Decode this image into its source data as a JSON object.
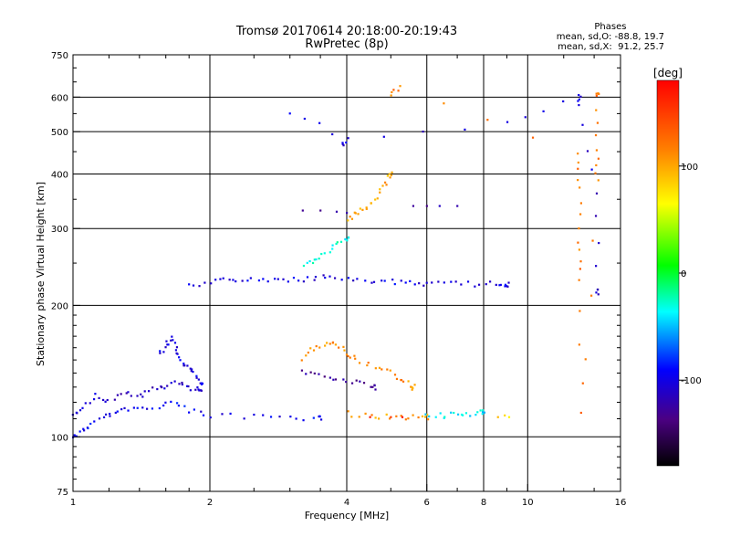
{
  "chart_data": {
    "type": "scatter",
    "title": "Tromsø 20170614 20:18:00-20:19:43",
    "subtitle": "RwPretec (8p)",
    "xlabel": "Frequency [MHz]",
    "ylabel": "Stationary phase Virtual Height [km]",
    "x_scale": "log",
    "y_scale": "log",
    "xlim": [
      1,
      16
    ],
    "ylim": [
      75,
      750
    ],
    "x_ticks": [
      1,
      2,
      4,
      6,
      8,
      10,
      16
    ],
    "x_tick_labels": [
      "1",
      "2",
      "4",
      "6",
      "8",
      "10",
      "16"
    ],
    "y_ticks": [
      75,
      100,
      200,
      300,
      400,
      500,
      600,
      750
    ],
    "y_tick_labels": [
      "75",
      "100",
      "200",
      "300",
      "400",
      "500",
      "600",
      "750"
    ],
    "grid": true,
    "stats": {
      "heading": "Phases",
      "line_o": "mean, sd,O: -88.8, 19.7",
      "line_x": "mean, sd,X:  91.2, 25.7"
    },
    "colorbar": {
      "label": "[deg]",
      "range": [
        -180,
        180
      ],
      "ticks": [
        100,
        0,
        -100
      ],
      "tick_labels": [
        "100",
        "0",
        "-100"
      ]
    },
    "traces": [
      {
        "name": "",
        "phase": -95,
        "points": [
          [
            1.0,
            100
          ],
          [
            1.05,
            103
          ],
          [
            1.1,
            107
          ],
          [
            1.18,
            112
          ],
          [
            1.25,
            114
          ],
          [
            1.35,
            116
          ],
          [
            1.5,
            117
          ],
          [
            1.65,
            120
          ],
          [
            1.8,
            115
          ],
          [
            2.0,
            112
          ],
          [
            2.5,
            111
          ],
          [
            3.0,
            110
          ],
          [
            3.5,
            110
          ]
        ]
      },
      {
        "name": "",
        "phase": -110,
        "points": [
          [
            1.0,
            112
          ],
          [
            1.05,
            118
          ],
          [
            1.12,
            124
          ],
          [
            1.2,
            121
          ],
          [
            1.3,
            126
          ],
          [
            1.4,
            124
          ],
          [
            1.5,
            128
          ],
          [
            1.6,
            130
          ],
          [
            1.7,
            134
          ],
          [
            1.8,
            130
          ],
          [
            1.9,
            128
          ]
        ]
      },
      {
        "name": "",
        "phase": -100,
        "points": [
          [
            1.55,
            155
          ],
          [
            1.6,
            162
          ],
          [
            1.65,
            168
          ],
          [
            1.7,
            158
          ],
          [
            1.72,
            150
          ],
          [
            1.78,
            145
          ],
          [
            1.85,
            140
          ],
          [
            1.92,
            132
          ]
        ]
      },
      {
        "name": "",
        "phase": -100,
        "points": [
          [
            1.8,
            222
          ],
          [
            2.0,
            226
          ],
          [
            2.2,
            228
          ],
          [
            2.4,
            230
          ],
          [
            2.7,
            229
          ],
          [
            3.0,
            230
          ],
          [
            3.3,
            229
          ],
          [
            3.6,
            232
          ],
          [
            4.0,
            230
          ],
          [
            4.5,
            228
          ],
          [
            5.0,
            226
          ],
          [
            5.5,
            226
          ],
          [
            6.0,
            225
          ],
          [
            6.8,
            224
          ],
          [
            7.6,
            224
          ],
          [
            8.5,
            224
          ],
          [
            9.0,
            224
          ]
        ]
      },
      {
        "name": "",
        "phase": -30,
        "points": [
          [
            3.2,
            245
          ],
          [
            3.4,
            255
          ],
          [
            3.6,
            262
          ],
          [
            3.8,
            275
          ],
          [
            4.0,
            283
          ]
        ]
      },
      {
        "name": "",
        "phase": -130,
        "points": [
          [
            3.2,
            330
          ],
          [
            3.5,
            330
          ],
          [
            3.8,
            328
          ],
          [
            4.0,
            326
          ]
        ]
      },
      {
        "name": "",
        "phase": 100,
        "points": [
          [
            4.0,
            315
          ],
          [
            4.2,
            325
          ],
          [
            4.4,
            335
          ],
          [
            4.6,
            350
          ],
          [
            4.8,
            375
          ],
          [
            5.0,
            398
          ]
        ]
      },
      {
        "name": "",
        "phase": -120,
        "points": [
          [
            5.6,
            338
          ],
          [
            6.0,
            338
          ],
          [
            6.4,
            338
          ],
          [
            7.0,
            338
          ]
        ]
      },
      {
        "name": "",
        "phase": 110,
        "points": [
          [
            3.2,
            150
          ],
          [
            3.4,
            160
          ],
          [
            3.6,
            165
          ],
          [
            3.8,
            162
          ],
          [
            4.0,
            155
          ],
          [
            4.2,
            150
          ],
          [
            4.6,
            145
          ],
          [
            5.0,
            140
          ],
          [
            5.3,
            135
          ],
          [
            5.6,
            130
          ]
        ]
      },
      {
        "name": "",
        "phase": 105,
        "points": [
          [
            4.0,
            113
          ],
          [
            4.5,
            112
          ],
          [
            5.0,
            111
          ],
          [
            5.5,
            111
          ],
          [
            6.0,
            111
          ]
        ]
      },
      {
        "name": "",
        "phase": 160,
        "points": [
          [
            4.5,
            111
          ],
          [
            5.0,
            111
          ],
          [
            5.3,
            111
          ]
        ]
      },
      {
        "name": "",
        "phase": -40,
        "points": [
          [
            6.0,
            112
          ],
          [
            6.5,
            112
          ],
          [
            7.0,
            113
          ],
          [
            7.5,
            113
          ],
          [
            8.0,
            114
          ]
        ]
      },
      {
        "name": "",
        "phase": -130,
        "points": [
          [
            3.2,
            140
          ],
          [
            3.5,
            138
          ],
          [
            3.8,
            136
          ],
          [
            4.2,
            133
          ],
          [
            4.6,
            130
          ]
        ]
      },
      {
        "name": "",
        "phase": 80,
        "points": [
          [
            8.6,
            111
          ],
          [
            8.9,
            112
          ],
          [
            9.1,
            111
          ]
        ]
      },
      {
        "name": "",
        "phase": -105,
        "points": [
          [
            3.0,
            555
          ],
          [
            4.0,
            480
          ],
          [
            3.9,
            465
          ],
          [
            9.0,
            530
          ],
          [
            13.0,
            600
          ],
          [
            13.0,
            580
          ],
          [
            14.2,
            360
          ],
          [
            14.2,
            215
          ]
        ]
      },
      {
        "name": "",
        "phase": 120,
        "points": [
          [
            5.0,
            600
          ],
          [
            5.2,
            640
          ],
          [
            13.0,
            450
          ],
          [
            13.0,
            370
          ],
          [
            13.0,
            280
          ],
          [
            13.0,
            230
          ],
          [
            13.2,
            112
          ],
          [
            14.2,
            385
          ],
          [
            14.2,
            450
          ],
          [
            14.2,
            610
          ]
        ]
      }
    ]
  }
}
